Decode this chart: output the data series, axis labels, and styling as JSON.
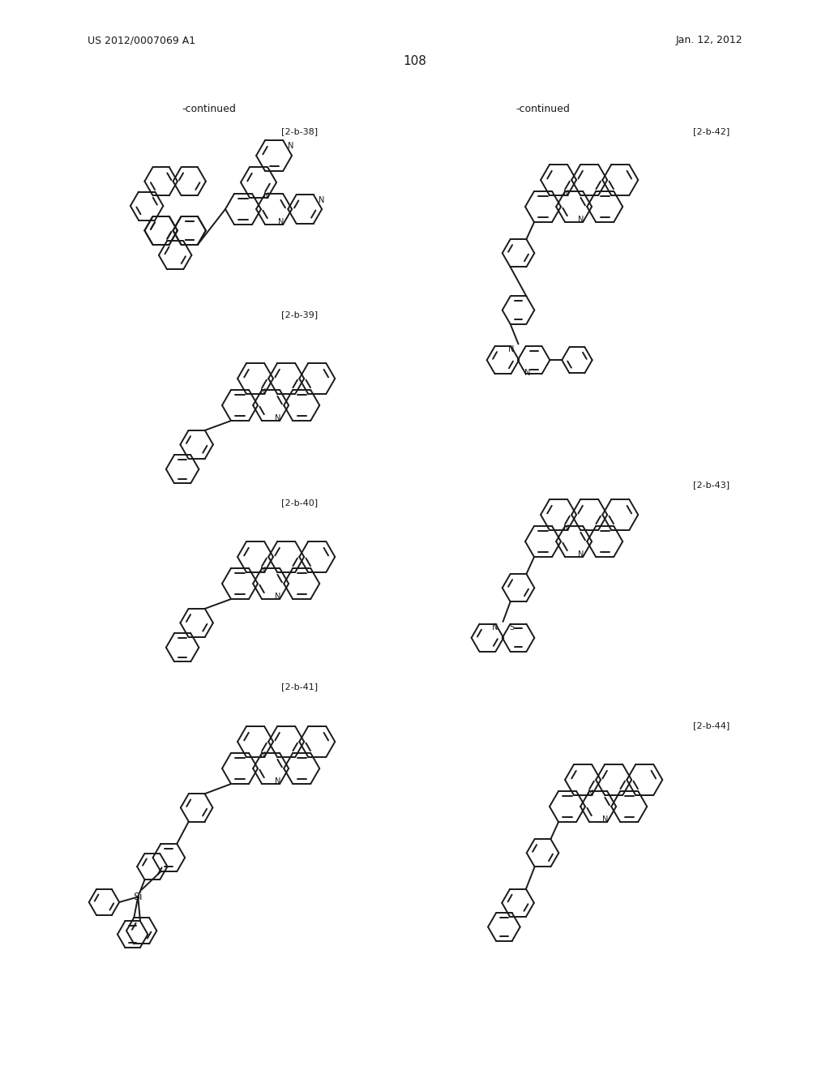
{
  "page_header_left": "US 2012/0007069 A1",
  "page_header_right": "Jan. 12, 2012",
  "page_number": "108",
  "background_color": "#ffffff",
  "text_color": "#1a1a1a",
  "line_color": "#1a1a1a"
}
